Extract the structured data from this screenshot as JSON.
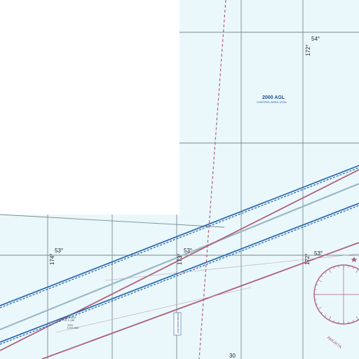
{
  "map": {
    "airspace": {
      "altitude_label": "2000 AGL",
      "sub_label": "CONTROL AREA 1234L"
    },
    "latitude_labels": [
      "54°",
      "53°",
      "53°",
      "53°"
    ],
    "longitude_labels": [
      "172°",
      "174°",
      "173°",
      "172°"
    ],
    "bottom_tick_label": "30",
    "compass_station_label": "AMUKTA",
    "boxed_note": "Jones Bank Marker",
    "small_notes": [
      "5200 MAA",
      "EL 5 QBI",
      "4090",
      "5 RIS BEE"
    ],
    "colors": {
      "sea": "#eaf8fc",
      "airway_blue": "#1f5fa8",
      "airway_maroon": "#b0607a",
      "airway_lightblue": "#9bb7c6",
      "grid": "#7a8a90"
    }
  }
}
